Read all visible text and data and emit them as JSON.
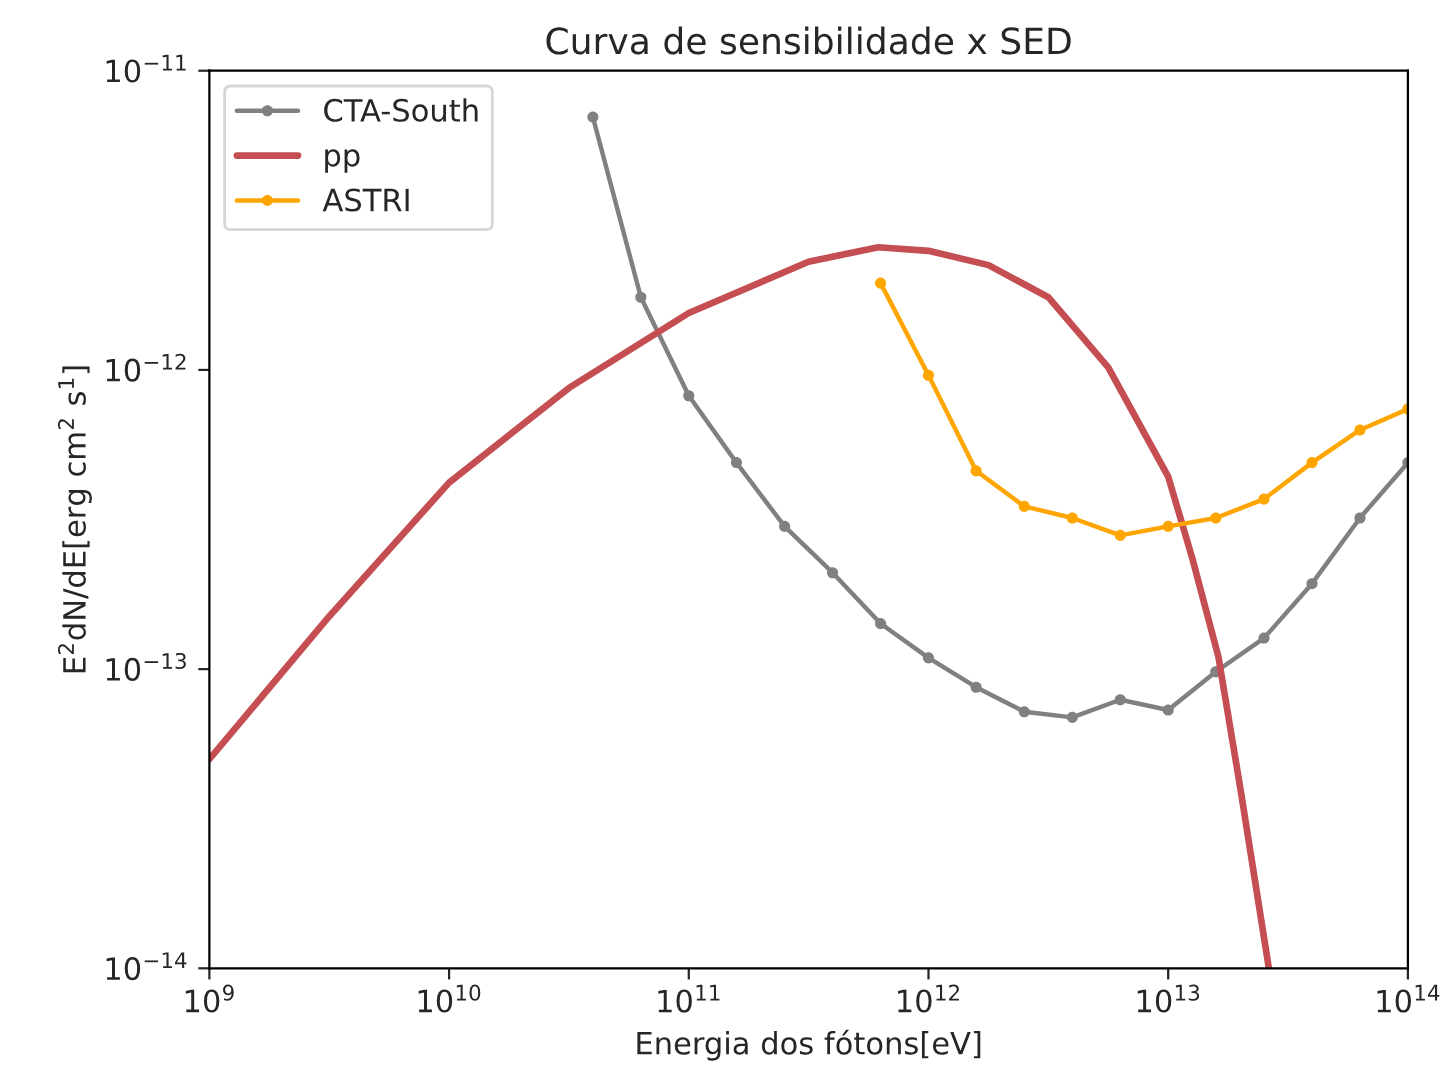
{
  "chart_data": {
    "type": "line",
    "title": "Curva de sensibilidade x SED",
    "xlabel": "Energia dos fótons[eV]",
    "ylabel": "E$^{2}$dN/dE[erg cm$^{2}$ s$^{1}$]",
    "log": "xy",
    "grid": false,
    "legend": "top left",
    "xlim": [
      1000000000.0,
      100000000000000.0
    ],
    "ylim": [
      1e-14,
      1e-11
    ],
    "xticks": [
      {
        "value": 1000000000.0,
        "label": "10$^{9}$"
      },
      {
        "value": 10000000000.0,
        "label": "10$^{10}$"
      },
      {
        "value": 100000000000.0,
        "label": "10$^{11}$"
      },
      {
        "value": 1000000000000.0,
        "label": "10$^{12}$"
      },
      {
        "value": 10000000000000.0,
        "label": "10$^{13}$"
      },
      {
        "value": 100000000000000.0,
        "label": "10$^{14}$"
      }
    ],
    "yticks": [
      {
        "value": 1e-14,
        "label": "10$^{−14}$"
      },
      {
        "value": 1e-13,
        "label": "10$^{−13}$"
      },
      {
        "value": 1e-12,
        "label": "10$^{−12}$"
      },
      {
        "value": 1e-11,
        "label": "10$^{−11}$"
      }
    ],
    "series": [
      {
        "name": "CTA-South",
        "color": "#808080",
        "marker": "circle",
        "x": [
          39800000000.0,
          63100000000.0,
          100000000000.0,
          158000000000.0,
          251000000000.0,
          398000000000.0,
          631000000000.0,
          1000000000000.0,
          1580000000000.0,
          2510000000000.0,
          3980000000000.0,
          6310000000000.0,
          10000000000000.0,
          15800000000000.0,
          25100000000000.0,
          39800000000000.0,
          63100000000000.0,
          100000000000000.0
        ],
        "values": [
          7e-12,
          1.75e-12,
          8.2e-13,
          4.9e-13,
          3e-13,
          2.1e-13,
          1.42e-13,
          1.09e-13,
          8.7e-14,
          7.2e-14,
          6.9e-14,
          7.9e-14,
          7.3e-14,
          9.8e-14,
          1.27e-13,
          1.93e-13,
          3.2e-13,
          4.9e-13
        ]
      },
      {
        "name": "pp",
        "color": "#c44e52",
        "marker": "none",
        "x": [
          1000000000.0,
          3160000000.0,
          10000000000.0,
          31600000000.0,
          100000000000.0,
          316000000000.0,
          617000000000.0,
          1000000000000.0,
          1780000000000.0,
          3160000000000.0,
          5620000000000.0,
          10000000000000.0,
          12600000000000.0,
          16200000000000.0,
          20000000000000.0,
          26300000000000.0
        ],
        "values": [
          5e-14,
          1.5e-13,
          4.2e-13,
          8.7e-13,
          1.55e-12,
          2.3e-12,
          2.57e-12,
          2.5e-12,
          2.24e-12,
          1.75e-12,
          1.02e-12,
          4.4e-13,
          2.35e-13,
          1.1e-13,
          4e-14,
          1e-14
        ]
      },
      {
        "name": "ASTRI",
        "color": "#ffa500",
        "marker": "circle",
        "x": [
          631000000000.0,
          1000000000000.0,
          1580000000000.0,
          2510000000000.0,
          3980000000000.0,
          6310000000000.0,
          10000000000000.0,
          15800000000000.0,
          25100000000000.0,
          39800000000000.0,
          63100000000000.0,
          100000000000000.0
        ],
        "values": [
          1.95e-12,
          9.6e-13,
          4.6e-13,
          3.5e-13,
          3.2e-13,
          2.8e-13,
          3e-13,
          3.2e-13,
          3.7e-13,
          4.9e-13,
          6.3e-13,
          7.4e-13
        ]
      }
    ]
  }
}
